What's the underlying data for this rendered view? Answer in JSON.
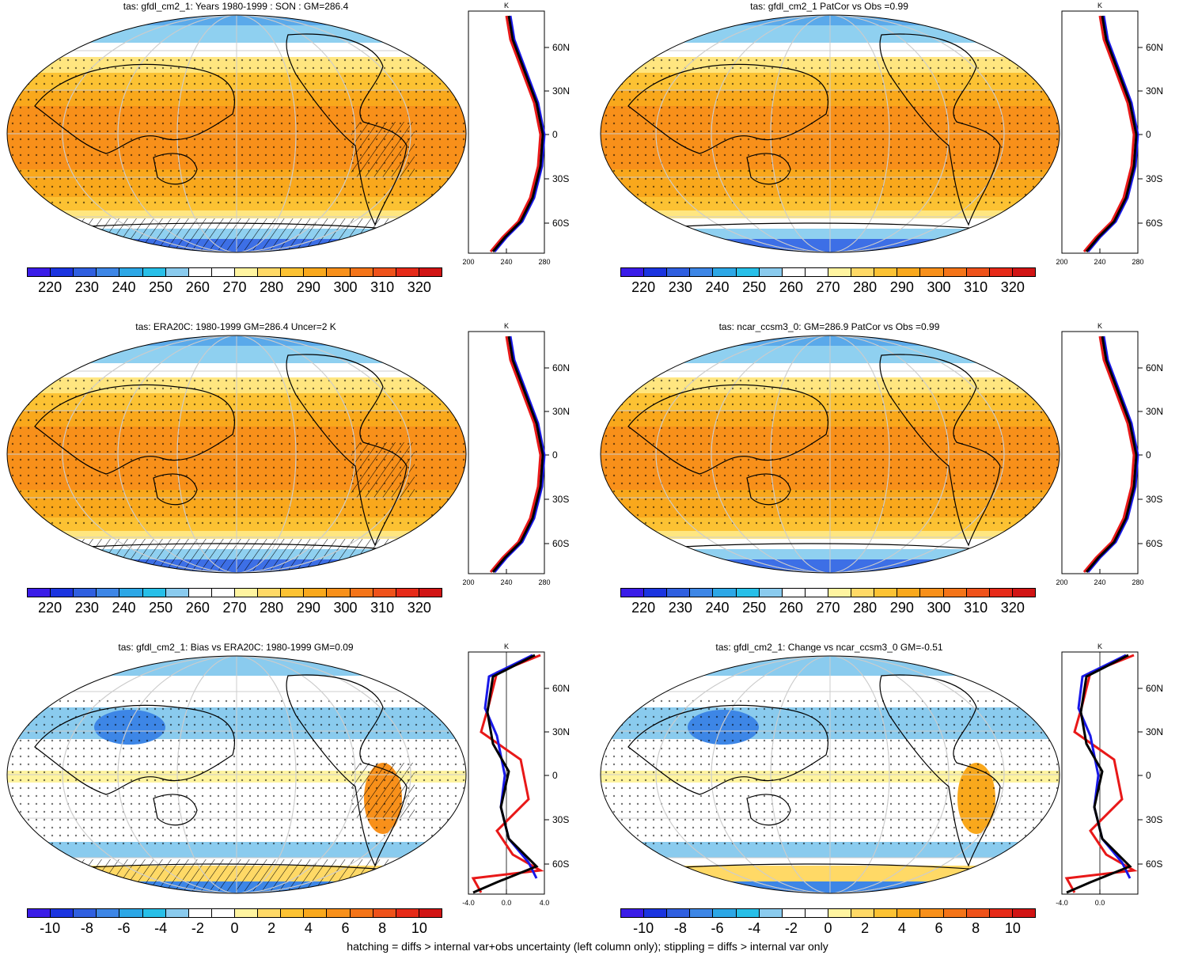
{
  "footer_note": "hatching = diffs > internal var+obs uncertainty (left column only); stippling = diffs > internal var only",
  "colors": {
    "abs_scale": [
      "#3a1ce8",
      "#1b34e0",
      "#2f5fe0",
      "#3d86e6",
      "#2ca7e6",
      "#27bfe8",
      "#8acbee",
      "#ffffff",
      "#ffffff",
      "#fff4a0",
      "#ffd966",
      "#fcc233",
      "#f9a81c",
      "#f8901a",
      "#f47418",
      "#ef521a",
      "#e62a18",
      "#d11414"
    ],
    "diff_scale": [
      "#3a1ce8",
      "#1b34e0",
      "#2f5fe0",
      "#3d86e6",
      "#2ca7e6",
      "#27bfe8",
      "#8acbee",
      "#ffffff",
      "#ffffff",
      "#fff4a0",
      "#ffd966",
      "#fcc233",
      "#f9a81c",
      "#f8901a",
      "#f47418",
      "#ef521a",
      "#e62a18",
      "#d11414"
    ],
    "line_black": "#000000",
    "line_blue": "#1818e8",
    "line_red": "#e81818"
  },
  "panels": [
    {
      "id": "p1",
      "title": "tas: gfdl_cm2_1: Years 1980-1999 : SON : GM=286.4",
      "colorbar_labels": [
        "220",
        "230",
        "240",
        "250",
        "260",
        "270",
        "280",
        "290",
        "300",
        "310",
        "320"
      ],
      "zonal_unit": "K",
      "zonal_x_ticks": [
        "200",
        "240",
        "280"
      ],
      "lat_ticks": [
        "60N",
        "30N",
        "0",
        "30S",
        "60S"
      ],
      "kind": "abs"
    },
    {
      "id": "p2",
      "title": "tas: gfdl_cm2_1 PatCor vs Obs =0.99",
      "colorbar_labels": [
        "220",
        "230",
        "240",
        "250",
        "260",
        "270",
        "280",
        "290",
        "300",
        "310",
        "320"
      ],
      "zonal_unit": "K",
      "zonal_x_ticks": [
        "200",
        "240",
        "280"
      ],
      "lat_ticks": [
        "60N",
        "30N",
        "0",
        "30S",
        "60S"
      ],
      "kind": "abs"
    },
    {
      "id": "p3",
      "title": "tas: ERA20C: 1980-1999 GM=286.4 Uncer=2 K",
      "colorbar_labels": [
        "220",
        "230",
        "240",
        "250",
        "260",
        "270",
        "280",
        "290",
        "300",
        "310",
        "320"
      ],
      "zonal_unit": "K",
      "zonal_x_ticks": [
        "200",
        "240",
        "280"
      ],
      "lat_ticks": [
        "60N",
        "30N",
        "0",
        "30S",
        "60S"
      ],
      "kind": "abs"
    },
    {
      "id": "p4",
      "title": "tas: ncar_ccsm3_0: GM=286.9 PatCor vs Obs =0.99",
      "colorbar_labels": [
        "220",
        "230",
        "240",
        "250",
        "260",
        "270",
        "280",
        "290",
        "300",
        "310",
        "320"
      ],
      "zonal_unit": "K",
      "zonal_x_ticks": [
        "200",
        "240",
        "280"
      ],
      "lat_ticks": [
        "60N",
        "30N",
        "0",
        "30S",
        "60S"
      ],
      "kind": "abs"
    },
    {
      "id": "p5",
      "title": "tas: gfdl_cm2_1: Bias vs ERA20C: 1980-1999  GM=0.09",
      "colorbar_labels": [
        "-10",
        "-8",
        "-6",
        "-4",
        "-2",
        "0",
        "2",
        "4",
        "6",
        "8",
        "10"
      ],
      "zonal_unit": "K",
      "zonal_x_ticks": [
        "-4.0",
        "0.0",
        "4.0"
      ],
      "lat_ticks": [
        "60N",
        "30N",
        "0",
        "30S",
        "60S"
      ],
      "kind": "diff"
    },
    {
      "id": "p6",
      "title": "tas: gfdl_cm2_1: Change vs ncar_ccsm3_0 GM=-0.51",
      "colorbar_labels": [
        "-10",
        "-8",
        "-6",
        "-4",
        "-2",
        "0",
        "2",
        "4",
        "6",
        "8",
        "10"
      ],
      "zonal_unit": "K",
      "zonal_x_ticks": [
        "-4.0",
        "0.0"
      ],
      "lat_ticks": [
        "60N",
        "30N",
        "0",
        "30S",
        "60S"
      ],
      "kind": "diff"
    }
  ]
}
